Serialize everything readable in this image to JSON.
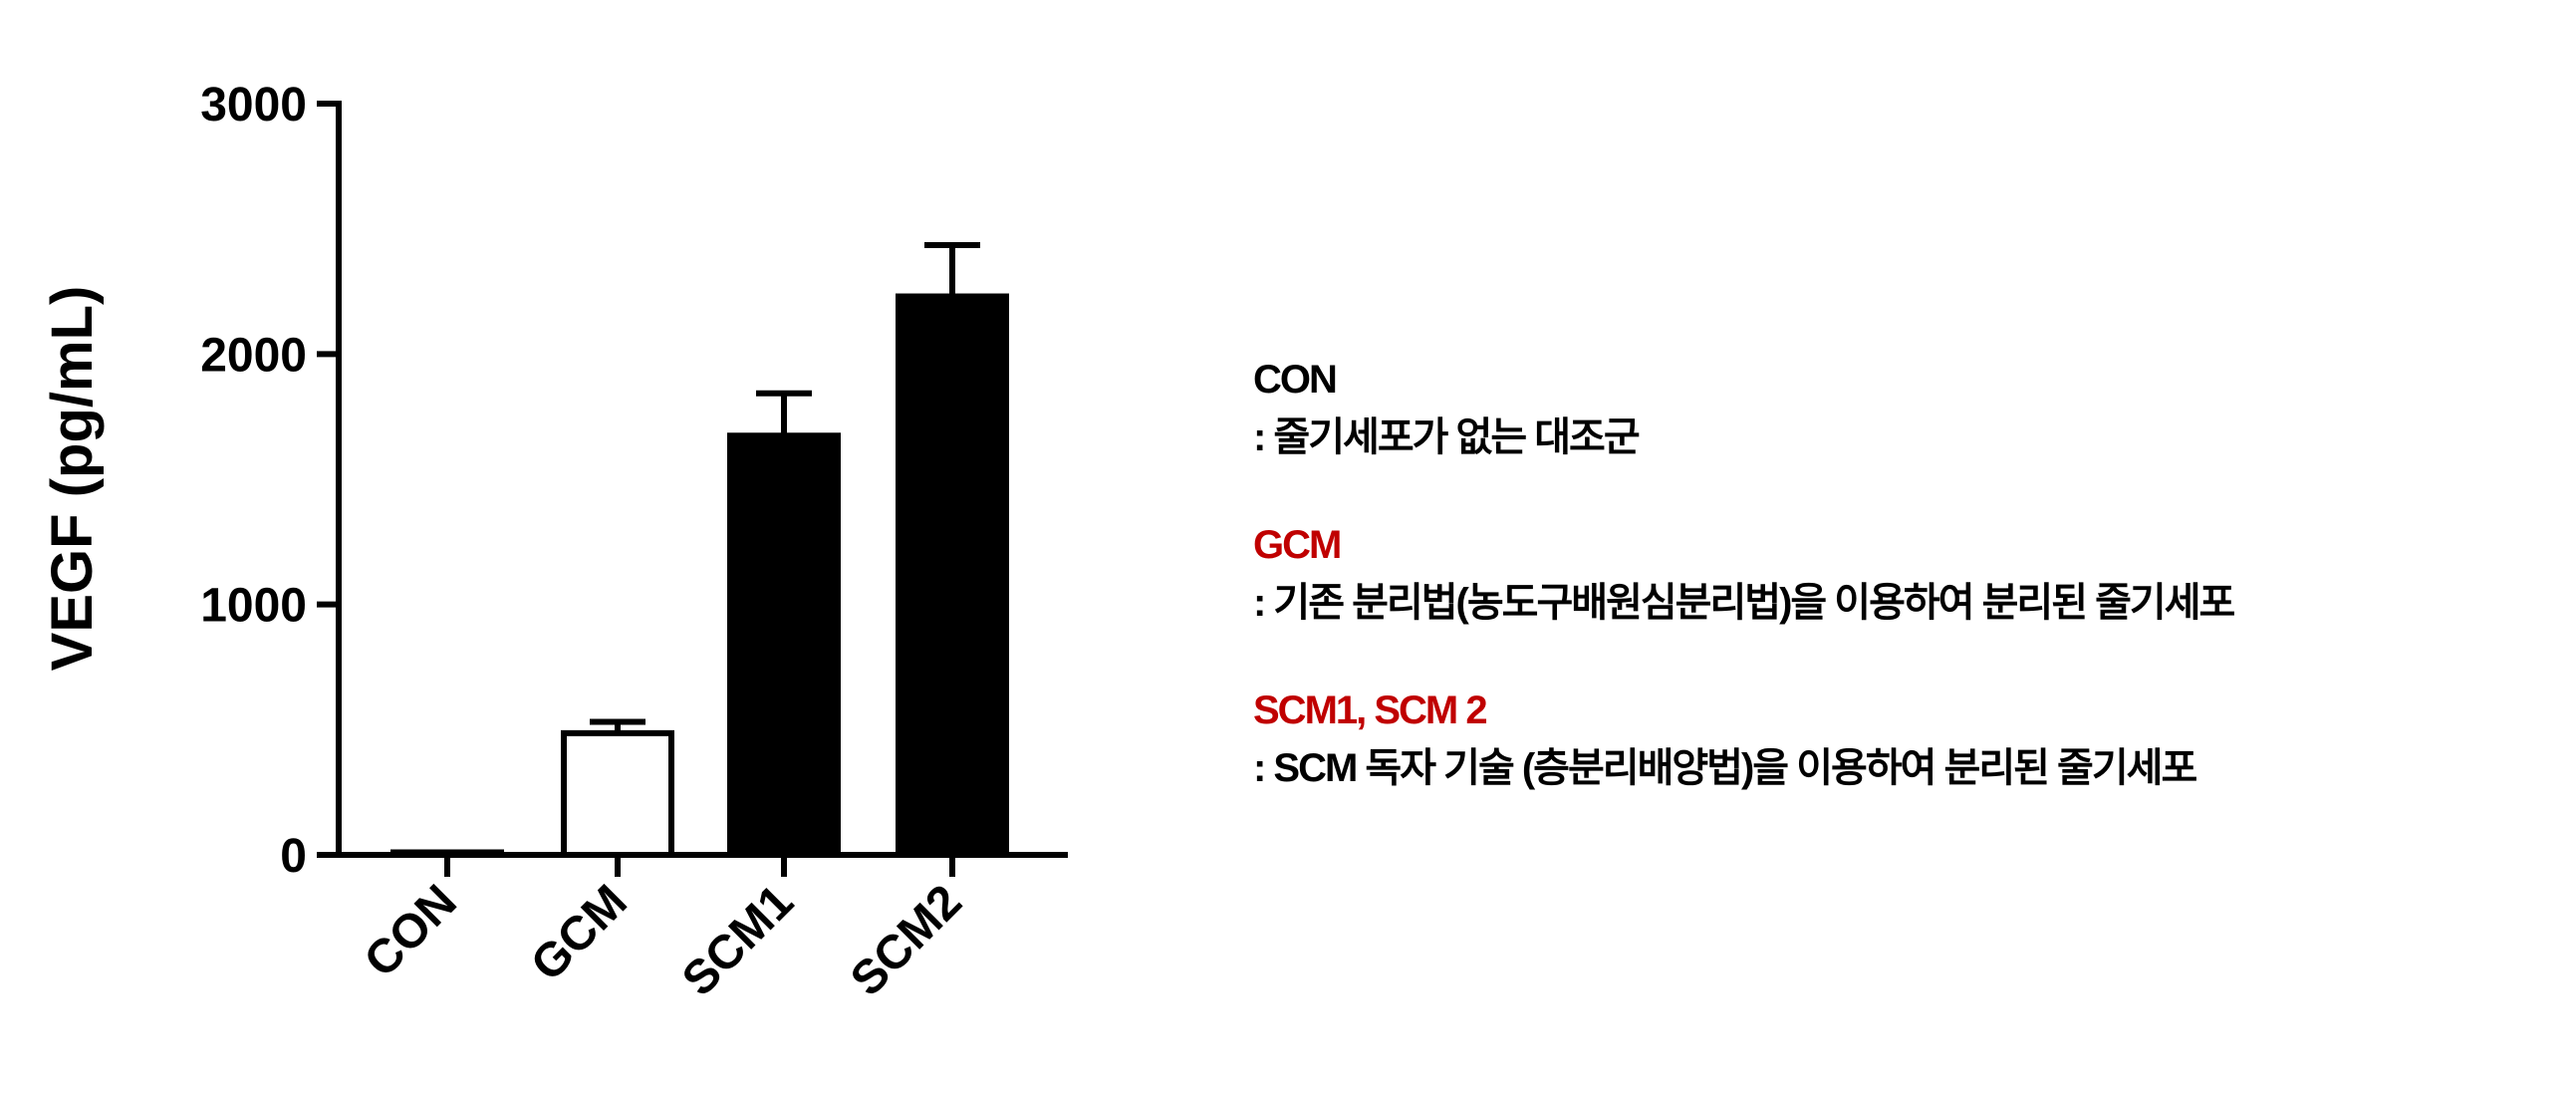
{
  "chart_data": {
    "type": "bar",
    "categories": [
      "CON",
      "GCM",
      "SCM1",
      "SCM2"
    ],
    "values": [
      10,
      486,
      1674,
      2230
    ],
    "error_upper": [
      10,
      531,
      1843,
      2435
    ],
    "bar_fills": [
      "#ffffff",
      "#ffffff",
      "#000000",
      "#000000"
    ],
    "ylabel": "VEGF (pg/mL)",
    "xlabel": "",
    "ylim": [
      0,
      3000
    ],
    "yticks": [
      "0",
      "1000",
      "2000",
      "3000"
    ],
    "grid": false
  },
  "legend_notes": [
    {
      "name": "CON",
      "color": "#000000",
      "desc": ": 줄기세포가 없는 대조군"
    },
    {
      "name": "GCM",
      "color": "#c00000",
      "desc": ": 기존 분리법(농도구배원심분리법)을 이용하여 분리된 줄기세포"
    },
    {
      "name": "SCM1, SCM 2",
      "color": "#c00000",
      "desc": ": SCM 독자 기술 (층분리배양법)을 이용하여 분리된 줄기세포"
    }
  ]
}
